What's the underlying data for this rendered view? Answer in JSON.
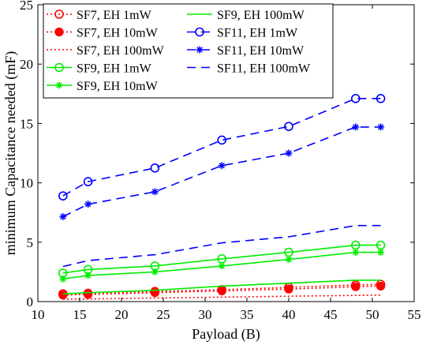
{
  "chart_data": {
    "type": "line",
    "xlabel": "Payload (B)",
    "ylabel": "minimum Capacitance needed (mF)",
    "xlim": [
      10,
      55
    ],
    "ylim": [
      0,
      25
    ],
    "xticks": [
      10,
      15,
      20,
      25,
      30,
      35,
      40,
      45,
      50,
      55
    ],
    "yticks": [
      0,
      5,
      10,
      15,
      20,
      25
    ],
    "grid": false,
    "legend_position": "top-left",
    "x": [
      13,
      16,
      24,
      32,
      40,
      48,
      51
    ],
    "series": [
      {
        "name": "SF7, EH 1mW",
        "color": "#ff0000",
        "dash": "dotted",
        "marker": "circle",
        "values": [
          0.65,
          0.7,
          0.85,
          1.0,
          1.2,
          1.4,
          1.45
        ]
      },
      {
        "name": "SF7, EH 10mW",
        "color": "#ff0000",
        "dash": "dotted",
        "marker": "filled-circle",
        "values": [
          0.55,
          0.6,
          0.75,
          0.9,
          1.05,
          1.25,
          1.3
        ]
      },
      {
        "name": "SF7, EH 100mW",
        "color": "#ff0000",
        "dash": "dotted",
        "marker": "none",
        "values": [
          0.2,
          0.22,
          0.3,
          0.37,
          0.45,
          0.52,
          0.55
        ]
      },
      {
        "name": "SF9, EH 1mW",
        "color": "#00ee00",
        "dash": "solid",
        "marker": "circle",
        "values": [
          2.4,
          2.7,
          3.0,
          3.6,
          4.15,
          4.75,
          4.75
        ]
      },
      {
        "name": "SF9, EH 10mW",
        "color": "#00ee00",
        "dash": "solid",
        "marker": "star",
        "values": [
          1.9,
          2.2,
          2.5,
          3.0,
          3.55,
          4.15,
          4.15
        ]
      },
      {
        "name": "SF9, EH 100mW",
        "color": "#00ee00",
        "dash": "solid",
        "marker": "none",
        "values": [
          0.65,
          0.75,
          0.95,
          1.3,
          1.55,
          1.8,
          1.8
        ]
      },
      {
        "name": "SF11, EH 1mW",
        "color": "#0000ff",
        "dash": "dashed",
        "marker": "circle",
        "values": [
          8.9,
          10.1,
          11.25,
          13.6,
          14.75,
          17.1,
          17.1
        ]
      },
      {
        "name": "SF11, EH 10mW",
        "color": "#0000ff",
        "dash": "dashed",
        "marker": "star",
        "values": [
          7.15,
          8.2,
          9.25,
          11.45,
          12.5,
          14.7,
          14.7
        ]
      },
      {
        "name": "SF11, EH 100mW",
        "color": "#0000ff",
        "dash": "dashed",
        "marker": "none",
        "values": [
          2.95,
          3.45,
          3.95,
          4.95,
          5.45,
          6.4,
          6.4
        ]
      }
    ]
  }
}
